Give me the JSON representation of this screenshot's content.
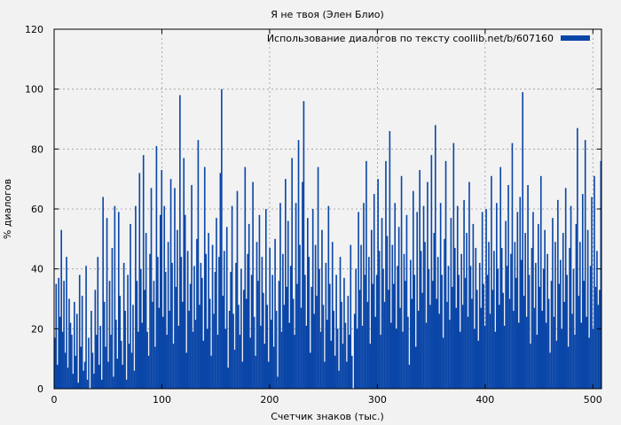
{
  "chart_data": {
    "type": "bar",
    "title": "Я не твоя (Элен Блио)",
    "xlabel": "Счетчик знаков (тыс.)",
    "ylabel": "% диалогов",
    "xlim": [
      0,
      508
    ],
    "ylim": [
      0,
      120
    ],
    "x_ticks": [
      "0",
      "100",
      "200",
      "300",
      "400",
      "500"
    ],
    "y_ticks": [
      "0",
      "20",
      "40",
      "60",
      "80",
      "100",
      "120"
    ],
    "grid": true,
    "legend_position": "top-right",
    "series": [
      {
        "name": "Использование диалогов по тексту coollib.net/b/607160",
        "color": "#0a46a8",
        "values": [
          17,
          35,
          8,
          37,
          24,
          53,
          19,
          36,
          12,
          44,
          7,
          30,
          22,
          18,
          5,
          29,
          11,
          25,
          2,
          38,
          14,
          31,
          6,
          9,
          41,
          3,
          17,
          0,
          26,
          12,
          5,
          33,
          18,
          44,
          8,
          21,
          3,
          64,
          29,
          14,
          57,
          9,
          36,
          18,
          47,
          4,
          61,
          23,
          10,
          59,
          31,
          16,
          8,
          42,
          26,
          3,
          38,
          15,
          55,
          12,
          28,
          6,
          61,
          36,
          19,
          72,
          40,
          22,
          78,
          33,
          52,
          19,
          11,
          45,
          67,
          29,
          36,
          14,
          81,
          44,
          27,
          58,
          73,
          24,
          61,
          39,
          18,
          49,
          26,
          70,
          42,
          15,
          67,
          34,
          53,
          21,
          98,
          44,
          29,
          77,
          58,
          12,
          46,
          26,
          35,
          68,
          19,
          41,
          23,
          50,
          83,
          28,
          42,
          37,
          16,
          74,
          45,
          20,
          52,
          30,
          11,
          48,
          25,
          39,
          57,
          18,
          44,
          72,
          100,
          31,
          46,
          20,
          54,
          7,
          26,
          39,
          61,
          25,
          13,
          42,
          66,
          28,
          18,
          40,
          9,
          33,
          74,
          30,
          45,
          55,
          17,
          38,
          69,
          24,
          11,
          49,
          36,
          58,
          21,
          44,
          32,
          15,
          60,
          28,
          9,
          47,
          23,
          38,
          14,
          50,
          26,
          4,
          36,
          62,
          19,
          45,
          28,
          70,
          34,
          56,
          22,
          41,
          77,
          30,
          18,
          62,
          35,
          83,
          48,
          27,
          69,
          96,
          38,
          21,
          57,
          44,
          12,
          34,
          60,
          25,
          48,
          31,
          74,
          40,
          19,
          53,
          28,
          9,
          42,
          23,
          61,
          35,
          16,
          49,
          26,
          11,
          38,
          20,
          6,
          44,
          29,
          15,
          37,
          22,
          9,
          31,
          18,
          48,
          11,
          0,
          25,
          40,
          20,
          59,
          33,
          48,
          21,
          62,
          38,
          76,
          29,
          44,
          15,
          53,
          35,
          65,
          24,
          38,
          70,
          46,
          18,
          57,
          40,
          29,
          76,
          51,
          33,
          86,
          22,
          48,
          35,
          62,
          20,
          41,
          54,
          27,
          71,
          19,
          45,
          36,
          58,
          24,
          8,
          43,
          30,
          66,
          38,
          14,
          59,
          26,
          73,
          46,
          32,
          61,
          49,
          22,
          69,
          40,
          28,
          78,
          36,
          52,
          88,
          30,
          44,
          25,
          62,
          38,
          17,
          50,
          76,
          29,
          41,
          23,
          57,
          34,
          82,
          47,
          27,
          61,
          38,
          19,
          45,
          28,
          63,
          37,
          52,
          24,
          69,
          41,
          30,
          55,
          20,
          47,
          33,
          16,
          42,
          27,
          59,
          35,
          21,
          60,
          38,
          49,
          25,
          71,
          33,
          46,
          19,
          62,
          40,
          28,
          74,
          47,
          32,
          21,
          56,
          41,
          68,
          30,
          45,
          82,
          26,
          49,
          37,
          59,
          22,
          64,
          43,
          99,
          31,
          52,
          24,
          68,
          38,
          15,
          47,
          59,
          27,
          42,
          18,
          55,
          34,
          71,
          26,
          40,
          53,
          22,
          45,
          30,
          12,
          36,
          57,
          24,
          49,
          16,
          63,
          35,
          43,
          20,
          52,
          29,
          67,
          38,
          14,
          47,
          61,
          25,
          40,
          18,
          55,
          87,
          31,
          49,
          22,
          65,
          36,
          83,
          24,
          53,
          17,
          41,
          64,
          20,
          71,
          34,
          46,
          28,
          33,
          76
        ]
      }
    ]
  }
}
